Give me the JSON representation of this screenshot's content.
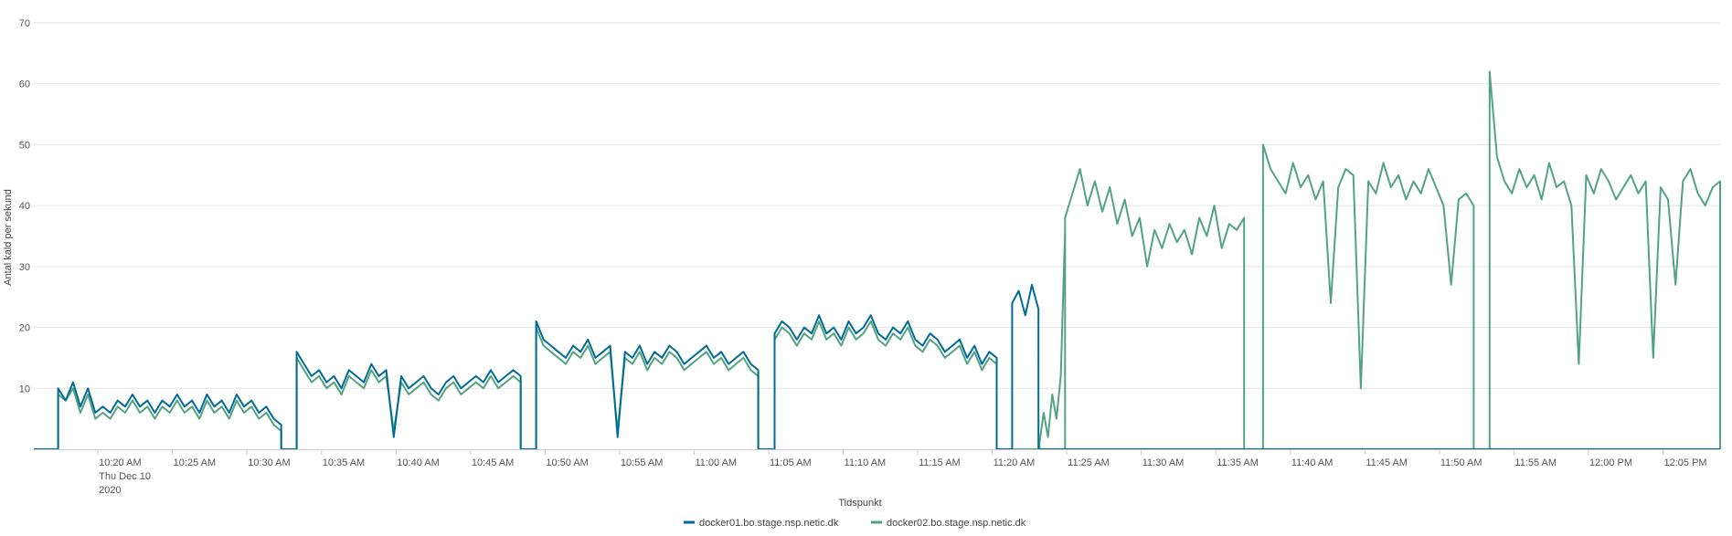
{
  "chart_data": {
    "type": "line",
    "title": "",
    "xlabel": "Tidspunkt",
    "ylabel": "Antal kald per sekund",
    "ylim": [
      0,
      70
    ],
    "yticks": [
      10,
      20,
      30,
      40,
      50,
      60,
      70
    ],
    "xlim": [
      "10:15:42",
      "12:08:50"
    ],
    "xticks": [
      {
        "t": "10:20",
        "label": "10:20 AM",
        "sub": [
          "Thu Dec 10",
          "2020"
        ]
      },
      {
        "t": "10:25",
        "label": "10:25 AM"
      },
      {
        "t": "10:30",
        "label": "10:30 AM"
      },
      {
        "t": "10:35",
        "label": "10:35 AM"
      },
      {
        "t": "10:40",
        "label": "10:40 AM"
      },
      {
        "t": "10:45",
        "label": "10:45 AM"
      },
      {
        "t": "10:50",
        "label": "10:50 AM"
      },
      {
        "t": "10:55",
        "label": "10:55 AM"
      },
      {
        "t": "11:00",
        "label": "11:00 AM"
      },
      {
        "t": "11:05",
        "label": "11:05 AM"
      },
      {
        "t": "11:10",
        "label": "11:10 AM"
      },
      {
        "t": "11:15",
        "label": "11:15 AM"
      },
      {
        "t": "11:20",
        "label": "11:20 AM"
      },
      {
        "t": "11:25",
        "label": "11:25 AM"
      },
      {
        "t": "11:30",
        "label": "11:30 AM"
      },
      {
        "t": "11:35",
        "label": "11:35 AM"
      },
      {
        "t": "11:40",
        "label": "11:40 AM"
      },
      {
        "t": "11:45",
        "label": "11:45 AM"
      },
      {
        "t": "11:50",
        "label": "11:50 AM"
      },
      {
        "t": "11:55",
        "label": "11:55 AM"
      },
      {
        "t": "12:00",
        "label": "12:00 PM"
      },
      {
        "t": "12:05",
        "label": "12:05 PM"
      }
    ],
    "grid": true,
    "legend_position": "bottom",
    "series": [
      {
        "name": "docker02.bo.stage.nsp.netic.dk",
        "color": "#52a383",
        "segments": [
          {
            "start": "10:17:20",
            "end": "10:32:18",
            "values": [
              9,
              8,
              10,
              6,
              9,
              5,
              6,
              5,
              7,
              6,
              8,
              6,
              7,
              5,
              7,
              6,
              8,
              6,
              7,
              5,
              8,
              6,
              7,
              5,
              8,
              6,
              7,
              5,
              6,
              4,
              3
            ]
          },
          {
            "start": "10:33:20",
            "end": "10:48:22",
            "values": [
              15,
              13,
              11,
              12,
              10,
              11,
              9,
              12,
              11,
              10,
              13,
              11,
              12,
              3,
              11,
              9,
              10,
              11,
              9,
              8,
              10,
              11,
              9,
              10,
              11,
              10,
              12,
              10,
              11,
              12,
              11
            ]
          },
          {
            "start": "10:49:24",
            "end": "11:04:18",
            "values": [
              20,
              17,
              16,
              15,
              14,
              16,
              15,
              17,
              14,
              15,
              16,
              3,
              15,
              14,
              16,
              13,
              15,
              14,
              16,
              15,
              13,
              14,
              15,
              16,
              14,
              15,
              13,
              14,
              15,
              13,
              12
            ]
          },
          {
            "start": "11:05:24",
            "end": "11:20:18",
            "values": [
              18,
              20,
              19,
              17,
              19,
              18,
              21,
              18,
              19,
              17,
              20,
              18,
              19,
              21,
              18,
              17,
              19,
              18,
              20,
              17,
              16,
              18,
              17,
              15,
              16,
              17,
              14,
              16,
              13,
              15,
              14
            ]
          },
          {
            "start": "11:23:10",
            "end": "11:24:53",
            "values": [
              1,
              6,
              2,
              9,
              5,
              12,
              36
            ]
          },
          {
            "start": "11:24:53",
            "end": "11:36:54",
            "values": [
              38,
              42,
              46,
              40,
              44,
              39,
              43,
              37,
              41,
              35,
              38,
              30,
              36,
              33,
              37,
              34,
              36,
              32,
              38,
              35,
              40,
              33,
              37,
              36,
              38
            ]
          },
          {
            "start": "11:38:10",
            "end": "11:52:18",
            "values": [
              50,
              46,
              44,
              42,
              47,
              43,
              45,
              41,
              44,
              24,
              43,
              46,
              45,
              10,
              44,
              42,
              47,
              43,
              45,
              41,
              44,
              42,
              46,
              43,
              40,
              27,
              41,
              42,
              40
            ]
          },
          {
            "start": "11:53:22",
            "end": "12:08:50",
            "values": [
              62,
              48,
              44,
              42,
              46,
              43,
              45,
              41,
              47,
              43,
              44,
              40,
              14,
              45,
              42,
              46,
              44,
              41,
              43,
              45,
              42,
              44,
              15,
              43,
              41,
              27,
              44,
              46,
              42,
              40,
              43,
              44
            ]
          }
        ]
      },
      {
        "name": "docker01.bo.stage.nsp.netic.dk",
        "color": "#006b96",
        "segments": [
          {
            "start": "10:17:20",
            "end": "10:32:18",
            "values": [
              10,
              8,
              11,
              7,
              10,
              6,
              7,
              6,
              8,
              7,
              9,
              7,
              8,
              6,
              8,
              7,
              9,
              7,
              8,
              6,
              9,
              7,
              8,
              6,
              9,
              7,
              8,
              6,
              7,
              5,
              4
            ]
          },
          {
            "start": "10:33:20",
            "end": "10:48:22",
            "values": [
              16,
              14,
              12,
              13,
              11,
              12,
              10,
              13,
              12,
              11,
              14,
              12,
              13,
              2,
              12,
              10,
              11,
              12,
              10,
              9,
              11,
              12,
              10,
              11,
              12,
              11,
              13,
              11,
              12,
              13,
              12
            ]
          },
          {
            "start": "10:49:24",
            "end": "11:04:18",
            "values": [
              21,
              18,
              17,
              16,
              15,
              17,
              16,
              18,
              15,
              16,
              17,
              2,
              16,
              15,
              17,
              14,
              16,
              15,
              17,
              16,
              14,
              15,
              16,
              17,
              15,
              16,
              14,
              15,
              16,
              14,
              13
            ]
          },
          {
            "start": "11:05:24",
            "end": "11:20:18",
            "values": [
              19,
              21,
              20,
              18,
              20,
              19,
              22,
              19,
              20,
              18,
              21,
              19,
              20,
              22,
              19,
              18,
              20,
              19,
              21,
              18,
              17,
              19,
              18,
              16,
              17,
              18,
              15,
              17,
              14,
              16,
              15
            ]
          },
          {
            "start": "11:21:20",
            "end": "11:23:06",
            "values": [
              24,
              26,
              22,
              27,
              23
            ]
          }
        ]
      }
    ],
    "legend": [
      {
        "name": "docker01.bo.stage.nsp.netic.dk",
        "color": "#006b96"
      },
      {
        "name": "docker02.bo.stage.nsp.netic.dk",
        "color": "#52a383"
      }
    ]
  }
}
